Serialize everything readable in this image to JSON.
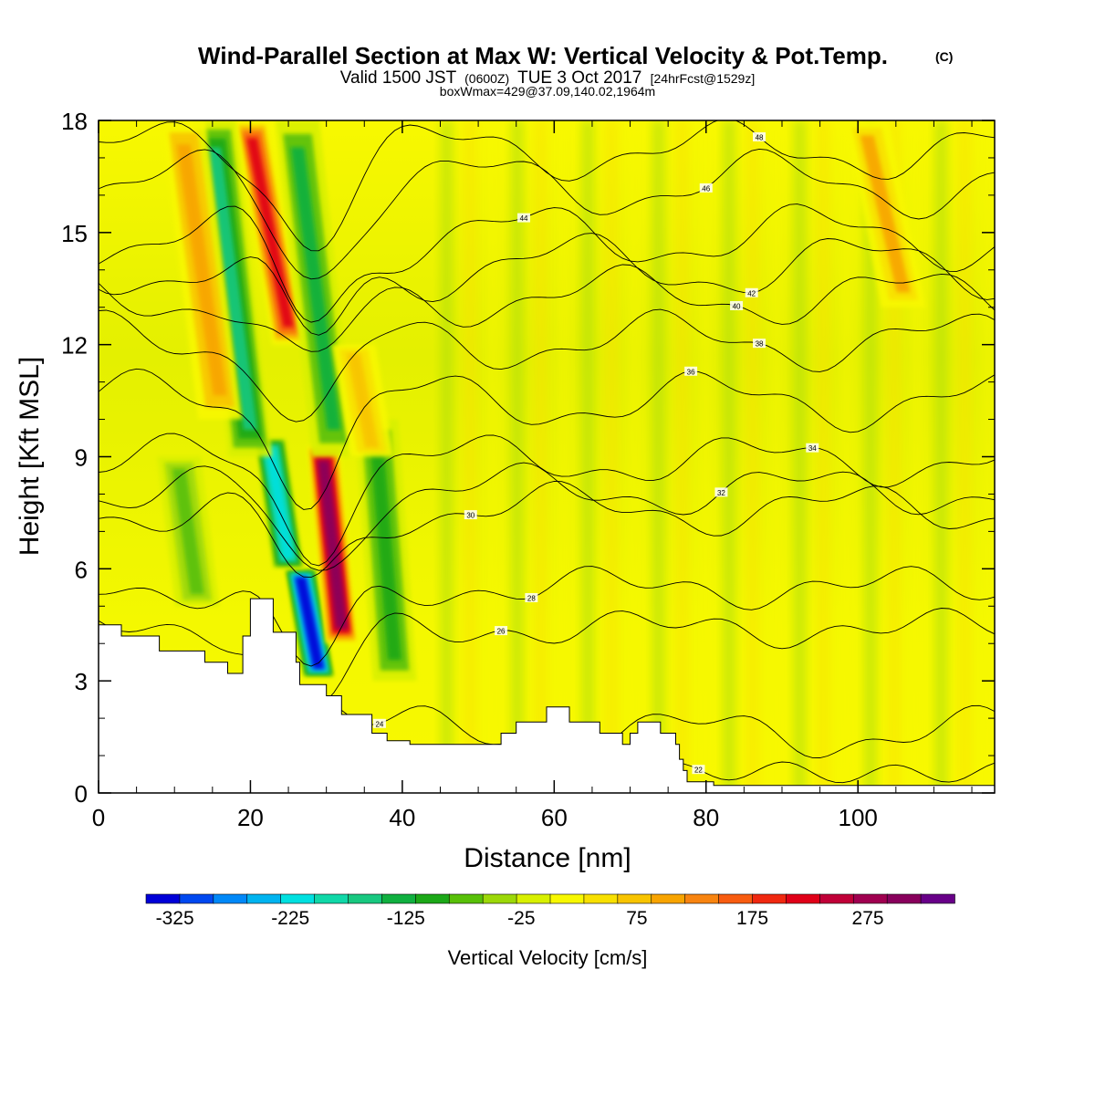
{
  "chart_data": {
    "type": "heatmap",
    "title": "Wind-Parallel Section at Max W: Vertical Velocity & Pot.Temp.",
    "title_mark": "(C)",
    "subtitle": {
      "valid_prefix": "Valid 1500 JST",
      "utc": "(0600Z)",
      "date": "TUE 3 Oct 2017",
      "forecast": "[24hrFcst@1529z]"
    },
    "box_info": "boxWmax=429@37.09,140.02,1964m",
    "xlabel": "Distance [nm]",
    "ylabel": "Height [Kft MSL]",
    "xlim": [
      0,
      118
    ],
    "ylim": [
      0,
      18
    ],
    "x_ticks": [
      "0",
      "20",
      "40",
      "60",
      "80",
      "100"
    ],
    "y_ticks": [
      "0",
      "3",
      "6",
      "9",
      "12",
      "15",
      "18"
    ],
    "colorbar": {
      "label": "Vertical Velocity [cm/s]",
      "range": [
        -350,
        350
      ],
      "tick_labels": [
        "-325",
        "-225",
        "-125",
        "-25",
        "75",
        "175",
        "275"
      ],
      "tick_values": [
        -325,
        -225,
        -125,
        -25,
        75,
        175,
        275
      ],
      "colors": [
        "#0000d8",
        "#0048f0",
        "#0088f8",
        "#00b4f0",
        "#00e0e0",
        "#10d8a8",
        "#18c880",
        "#10b040",
        "#1ca818",
        "#58c008",
        "#9cd808",
        "#d8f000",
        "#f8f800",
        "#f8e000",
        "#f8c400",
        "#f8a400",
        "#f88410",
        "#f85c10",
        "#f02810",
        "#e00018",
        "#c00038",
        "#a00050",
        "#88005c",
        "#680088"
      ]
    },
    "w_features": [
      {
        "x": 29,
        "z_bottom": 3.1,
        "z_top": 6.0,
        "w": -330
      },
      {
        "x": 25,
        "z_bottom": 6.0,
        "z_top": 9.5,
        "w": -230
      },
      {
        "x": 32,
        "z_bottom": 4.0,
        "z_top": 9.3,
        "w": 300
      },
      {
        "x": 25,
        "z_bottom": 12.0,
        "z_top": 18.0,
        "w": 220
      },
      {
        "x": 20,
        "z_bottom": 9.0,
        "z_top": 18.0,
        "w": -150
      },
      {
        "x": 31,
        "z_bottom": 9.0,
        "z_top": 18.0,
        "w": -120
      },
      {
        "x": 13,
        "z_bottom": 5.0,
        "z_top": 9.0,
        "w": -80
      },
      {
        "x": 39,
        "z_bottom": 3.0,
        "z_top": 10.0,
        "w": -100
      },
      {
        "x": 16,
        "z_bottom": 10.0,
        "z_top": 18.0,
        "w": 110
      },
      {
        "x": 36,
        "z_bottom": 9.0,
        "z_top": 12.0,
        "w": 80
      },
      {
        "x": 106,
        "z_bottom": 13.0,
        "z_top": 18.0,
        "w": 90
      }
    ],
    "terrain": [
      [
        0,
        4.5
      ],
      [
        3,
        4.5
      ],
      [
        3,
        4.2
      ],
      [
        8,
        4.2
      ],
      [
        8,
        3.8
      ],
      [
        14,
        3.8
      ],
      [
        14,
        3.5
      ],
      [
        17,
        3.5
      ],
      [
        17,
        3.2
      ],
      [
        19,
        3.2
      ],
      [
        19,
        4.2
      ],
      [
        20,
        4.2
      ],
      [
        20,
        5.2
      ],
      [
        23,
        5.2
      ],
      [
        23,
        4.3
      ],
      [
        26,
        4.3
      ],
      [
        26,
        3.5
      ],
      [
        26.5,
        3.5
      ],
      [
        26.5,
        2.9
      ],
      [
        30,
        2.9
      ],
      [
        30,
        2.6
      ],
      [
        32,
        2.6
      ],
      [
        32,
        2.1
      ],
      [
        36,
        2.1
      ],
      [
        36,
        1.6
      ],
      [
        38,
        1.6
      ],
      [
        38,
        1.4
      ],
      [
        41,
        1.4
      ],
      [
        41,
        1.3
      ],
      [
        53,
        1.3
      ],
      [
        53,
        1.6
      ],
      [
        55,
        1.6
      ],
      [
        55,
        1.9
      ],
      [
        59,
        1.9
      ],
      [
        59,
        2.3
      ],
      [
        62,
        2.3
      ],
      [
        62,
        1.9
      ],
      [
        66,
        1.9
      ],
      [
        66,
        1.6
      ],
      [
        69,
        1.6
      ],
      [
        69,
        1.3
      ],
      [
        70,
        1.3
      ],
      [
        70,
        1.6
      ],
      [
        71,
        1.6
      ],
      [
        71,
        1.9
      ],
      [
        74,
        1.9
      ],
      [
        74,
        1.6
      ],
      [
        76,
        1.6
      ],
      [
        76,
        1.3
      ],
      [
        76.5,
        1.3
      ],
      [
        76.5,
        0.9
      ],
      [
        77,
        0.9
      ],
      [
        77,
        0.6
      ],
      [
        77.5,
        0.6
      ],
      [
        77.5,
        0.3
      ],
      [
        81,
        0.3
      ],
      [
        81,
        0.2
      ],
      [
        118,
        0.2
      ]
    ],
    "theta_contours": [
      {
        "level": 22,
        "label": "22",
        "base": 0.55,
        "amp": 0.05,
        "label_x": 79
      },
      {
        "level": 24,
        "label": "24",
        "base": 1.6,
        "amp": 0.5,
        "label_x": 37
      },
      {
        "level": 26,
        "label": "26",
        "base": 4.4,
        "amp": 0.3,
        "label_x": 53
      },
      {
        "level": 28,
        "label": "28",
        "base": 5.5,
        "amp": 0.35,
        "label_x": 57
      },
      {
        "level": 30,
        "label": "30",
        "base": 7.6,
        "amp": 0.5,
        "label_x": 49
      },
      {
        "level": 32,
        "label": "32",
        "base": 8.1,
        "amp": 0.5,
        "label_x": 82
      },
      {
        "level": 34,
        "label": "34",
        "base": 8.9,
        "amp": 0.5,
        "label_x": 94
      },
      {
        "level": 36,
        "label": "36",
        "base": 10.5,
        "amp": 0.6,
        "label_x": 78
      },
      {
        "level": 38,
        "label": "38",
        "base": 12.1,
        "amp": 0.6,
        "label_x": 87
      },
      {
        "level": 40,
        "label": "40",
        "base": 13.3,
        "amp": 0.6,
        "label_x": 84
      },
      {
        "level": 42,
        "label": "42",
        "base": 14.1,
        "amp": 0.7,
        "label_x": 86
      },
      {
        "level": 44,
        "label": "44",
        "base": 14.9,
        "amp": 0.7,
        "label_x": 56
      },
      {
        "level": 46,
        "label": "46",
        "base": 16.3,
        "amp": 0.7,
        "label_x": 80
      },
      {
        "level": 48,
        "label": "48",
        "base": 17.2,
        "amp": 0.6,
        "label_x": 87
      }
    ]
  }
}
